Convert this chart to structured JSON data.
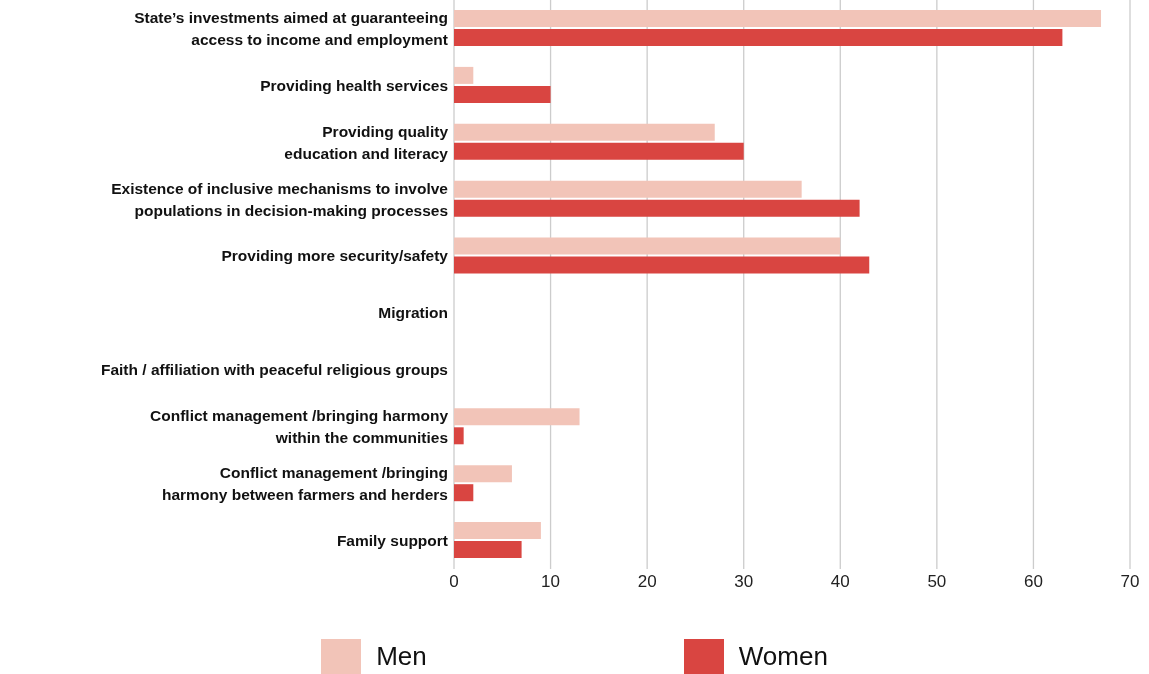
{
  "chart_data": {
    "type": "bar",
    "orientation": "horizontal",
    "categories": [
      "State’s investments aimed at guaranteeing\naccess to income and employment",
      "Providing health services",
      "Providing quality\neducation and literacy",
      "Existence of inclusive mechanisms to involve\npopulations in decision-making processes",
      "Providing more security/safety",
      "Migration",
      "Faith / affiliation with peaceful religious groups",
      "Conflict management /bringing harmony\nwithin the communities",
      "Conflict management /bringing\nharmony between farmers and herders",
      "Family support"
    ],
    "series": [
      {
        "name": "Men",
        "color": "#f2c4b8",
        "values": [
          67,
          2,
          27,
          36,
          40,
          0,
          0,
          13,
          6,
          9
        ]
      },
      {
        "name": "Women",
        "color": "#d94541",
        "values": [
          63,
          10,
          30,
          42,
          43,
          0,
          0,
          1,
          2,
          7
        ]
      }
    ],
    "xlim": [
      0,
      70
    ],
    "xticks": [
      0,
      10,
      20,
      30,
      40,
      50,
      60,
      70
    ],
    "grid": "x",
    "legend": "bottom"
  }
}
